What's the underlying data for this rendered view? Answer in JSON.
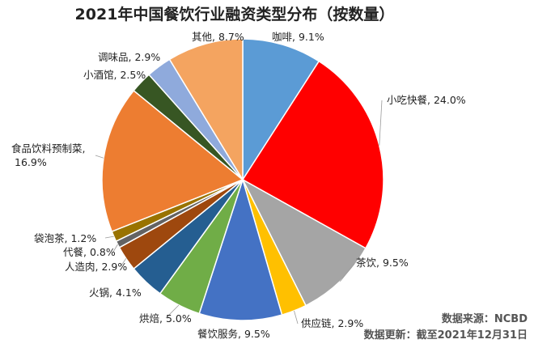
{
  "chart_data": {
    "type": "pie",
    "title": "2021年中国餐饮行业融资类型分布（按数量）",
    "start_angle_deg": 0,
    "direction": "clockwise",
    "slices": [
      {
        "name": "咖啡",
        "value": 9.1,
        "label": "咖啡, 9.1%",
        "color": "#5b9bd5"
      },
      {
        "name": "小吃快餐",
        "value": 24.0,
        "label": "小吃快餐, 24.0%",
        "color": "#ff0000"
      },
      {
        "name": "茶饮",
        "value": 9.5,
        "label": "茶饮, 9.5%",
        "color": "#a5a5a5"
      },
      {
        "name": "供应链",
        "value": 2.9,
        "label": "供应链, 2.9%",
        "color": "#ffc000"
      },
      {
        "name": "餐饮服务",
        "value": 9.5,
        "label": "餐饮服务, 9.5%",
        "color": "#4472c4"
      },
      {
        "name": "烘焙",
        "value": 5.0,
        "label": "烘焙, 5.0%",
        "color": "#70ad47"
      },
      {
        "name": "火锅",
        "value": 4.1,
        "label": "火锅, 4.1%",
        "color": "#255e91"
      },
      {
        "name": "人造肉",
        "value": 2.9,
        "label": "人造肉, 2.9%",
        "color": "#9e480e"
      },
      {
        "name": "代餐",
        "value": 0.8,
        "label": "代餐, 0.8%",
        "color": "#636363"
      },
      {
        "name": "袋泡茶",
        "value": 1.2,
        "label": "袋泡茶, 1.2%",
        "color": "#997300"
      },
      {
        "name": "食品饮料预制菜",
        "value": 16.9,
        "label_lines": [
          "食品饮料预制菜,",
          "16.9%"
        ],
        "color": "#ed7d31"
      },
      {
        "name": "小酒馆",
        "value": 2.5,
        "label": "小酒馆, 2.5%",
        "color": "#375623"
      },
      {
        "name": "调味品",
        "value": 2.9,
        "label": "调味品, 2.9%",
        "color": "#8faadc"
      },
      {
        "name": "其他",
        "value": 8.7,
        "label": "其他, 8.7%",
        "color": "#f4a460"
      }
    ]
  },
  "source": {
    "line1": "数据来源：NCBD",
    "line2": "数据更新：截至2021年12月31日"
  }
}
